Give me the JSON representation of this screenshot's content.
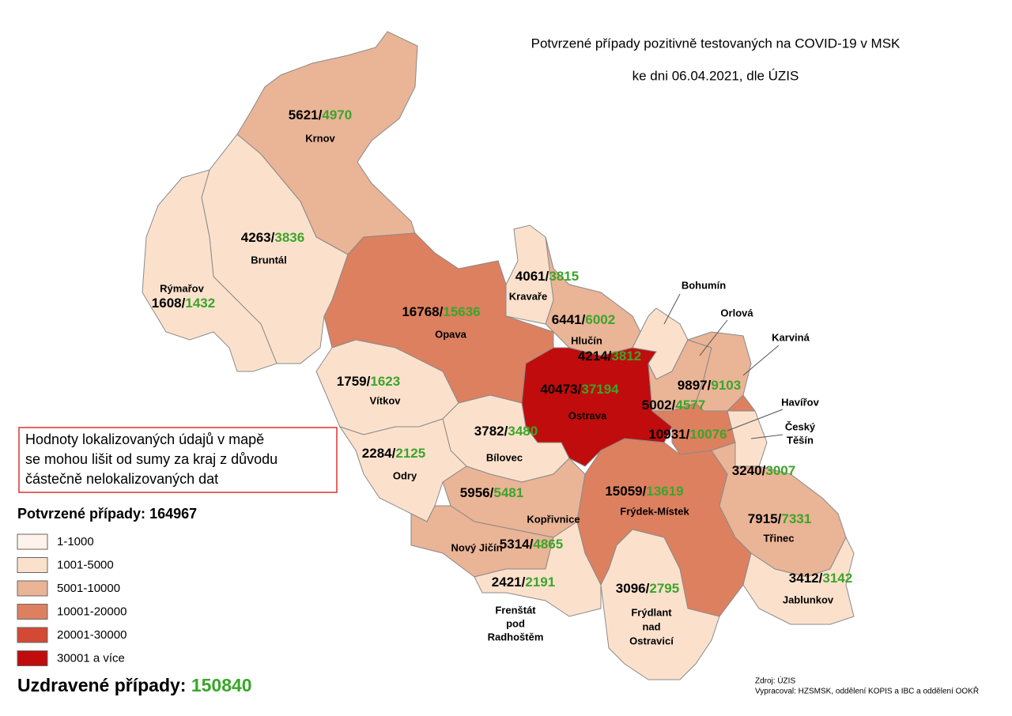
{
  "title": [
    "Potvrzené případy pozitivně testovaných na COVID-19 v MSK",
    "ke dni 06.04.2021, dle ÚZIS"
  ],
  "separator": "/",
  "colors": {
    "confirmed": "#000000",
    "recovered": "#3aa52a"
  },
  "districts": [
    {
      "name": [
        "Krnov"
      ],
      "confirmed": 5621,
      "recovered": 4970,
      "color": "#eab496"
    },
    {
      "name": [
        "Bruntál"
      ],
      "confirmed": 4263,
      "recovered": 3836,
      "color": "#fbe1cc"
    },
    {
      "name": [
        "Rýmařov"
      ],
      "confirmed": 1608,
      "recovered": 1432,
      "color": "#fbe1cc"
    },
    {
      "name": [
        "Opava"
      ],
      "confirmed": 16768,
      "recovered": 15636,
      "color": "#dd8060"
    },
    {
      "name": [
        "Kravaře"
      ],
      "confirmed": 4061,
      "recovered": 3815,
      "color": "#fbe1cc"
    },
    {
      "name": [
        "Hlučín"
      ],
      "confirmed": 6441,
      "recovered": 6002,
      "color": "#eab496"
    },
    {
      "name": [
        "Ostrava"
      ],
      "confirmed": 40473,
      "recovered": 37194,
      "color": "#c00c0c"
    },
    {
      "name": [
        "Bohumín"
      ],
      "confirmed": 4214,
      "recovered": 3812,
      "color": "#fbe1cc"
    },
    {
      "name": [
        "Orlová"
      ],
      "confirmed": 5002,
      "recovered": 4577,
      "color": "#eab496"
    },
    {
      "name": [
        "Karviná"
      ],
      "confirmed": 9897,
      "recovered": 9103,
      "color": "#eab496"
    },
    {
      "name": [
        "Havířov"
      ],
      "confirmed": 10931,
      "recovered": 10076,
      "color": "#dd8060"
    },
    {
      "name": [
        "Český",
        "Těšín"
      ],
      "confirmed": 3240,
      "recovered": 3007,
      "color": "#fbe1cc"
    },
    {
      "name": [
        "Vítkov"
      ],
      "confirmed": 1759,
      "recovered": 1623,
      "color": "#fbe1cc"
    },
    {
      "name": [
        "Bílovec"
      ],
      "confirmed": 3782,
      "recovered": 3480,
      "color": "#fbe1cc"
    },
    {
      "name": [
        "Odry"
      ],
      "confirmed": 2284,
      "recovered": 2125,
      "color": "#fbe1cc"
    },
    {
      "name": [
        "Kopřivnice"
      ],
      "confirmed": 5956,
      "recovered": 5481,
      "color": "#eab496"
    },
    {
      "name": [
        "Nový Jičín"
      ],
      "confirmed": 5314,
      "recovered": 4865,
      "color": "#eab496"
    },
    {
      "name": [
        "Frenštát",
        "pod",
        "Radhoštěm"
      ],
      "confirmed": 2421,
      "recovered": 2191,
      "color": "#fbe1cc"
    },
    {
      "name": [
        "Frýdek-Místek"
      ],
      "confirmed": 15059,
      "recovered": 13619,
      "color": "#dd8060"
    },
    {
      "name": [
        "Frýdlant",
        "nad",
        "Ostravicí"
      ],
      "confirmed": 3096,
      "recovered": 2795,
      "color": "#fbe1cc"
    },
    {
      "name": [
        "Třinec"
      ],
      "confirmed": 7915,
      "recovered": 7331,
      "color": "#eab496"
    },
    {
      "name": [
        "Jablunkov"
      ],
      "confirmed": 3412,
      "recovered": 3142,
      "color": "#fbe1cc"
    }
  ],
  "note": [
    "Hodnoty lokalizovaných údajů v mapě",
    "se mohou lišit od sumy za kraj z důvodu",
    "částečně nelokalizovaných dat"
  ],
  "confirmed_total": {
    "label": "Potvrzené případy:",
    "value": 164967
  },
  "legend": [
    {
      "label": "1-1000",
      "color": "#fdf3ea"
    },
    {
      "label": "1001-5000",
      "color": "#fbe1cc"
    },
    {
      "label": "5001-10000",
      "color": "#eab496"
    },
    {
      "label": "10001-20000",
      "color": "#dd8060"
    },
    {
      "label": "20001-30000",
      "color": "#d24a33"
    },
    {
      "label": "30001 a více",
      "color": "#c00c0c"
    }
  ],
  "recovered_total": {
    "label": "Uzdravené případy:",
    "value": 150840
  },
  "source": [
    "Zdroj: ÚZIS",
    "Vypracoval: HZSMSK, oddělení KOPIS a IBC a oddělení OOKŘ"
  ]
}
